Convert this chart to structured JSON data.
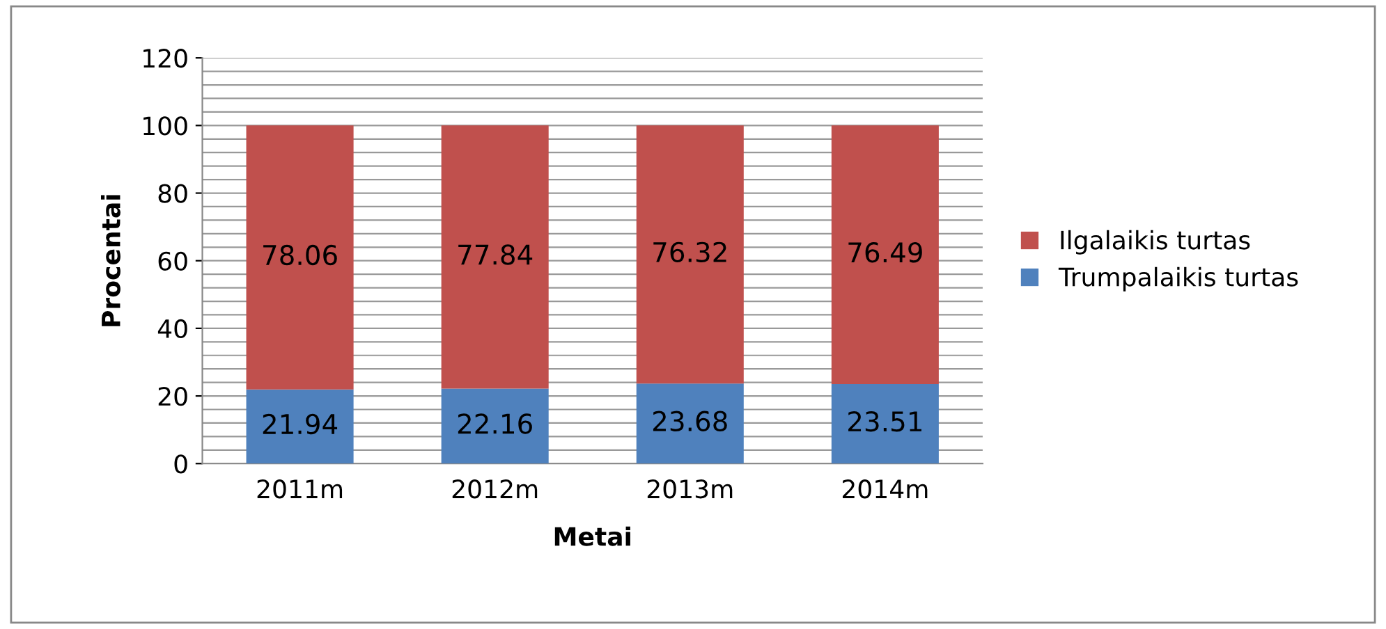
{
  "chart_data": {
    "type": "bar",
    "stacked": true,
    "xlabel": "Metai",
    "ylabel": "Procentai",
    "categories": [
      "2011m",
      "2012m",
      "2013m",
      "2014m"
    ],
    "series": [
      {
        "name": "Trumpalaikis turtas",
        "color": "#4f81bd",
        "values": [
          21.94,
          22.16,
          23.68,
          23.51
        ]
      },
      {
        "name": "Ilgalaikis turtas",
        "color": "#c0504d",
        "values": [
          78.06,
          77.84,
          76.32,
          76.49
        ]
      }
    ],
    "data_labels": true,
    "ylim": [
      0,
      120
    ],
    "yticks": [
      0,
      {
        "value": 4,
        "label": null
      },
      {
        "value": 8,
        "label": null
      },
      {
        "value": 12,
        "label": null
      },
      {
        "value": 16,
        "label": null
      },
      20,
      {
        "value": 24,
        "label": null
      },
      {
        "value": 28,
        "label": null
      },
      {
        "value": 32,
        "label": null
      },
      {
        "value": 36,
        "label": null
      },
      40,
      {
        "value": 44,
        "label": null
      },
      {
        "value": 48,
        "label": null
      },
      {
        "value": 52,
        "label": null
      },
      {
        "value": 56,
        "label": null
      },
      60,
      {
        "value": 64,
        "label": null
      },
      {
        "value": 68,
        "label": null
      },
      {
        "value": 72,
        "label": null
      },
      {
        "value": 76,
        "label": null
      },
      80,
      {
        "value": 84,
        "label": null
      },
      {
        "value": 88,
        "label": null
      },
      {
        "value": 92,
        "label": null
      },
      {
        "value": 96,
        "label": null
      },
      100,
      {
        "value": 104,
        "label": null
      },
      {
        "value": 108,
        "label": null
      },
      {
        "value": 112,
        "label": null
      },
      {
        "value": 116,
        "label": null
      },
      120
    ],
    "grid": "y",
    "legend": "right"
  }
}
